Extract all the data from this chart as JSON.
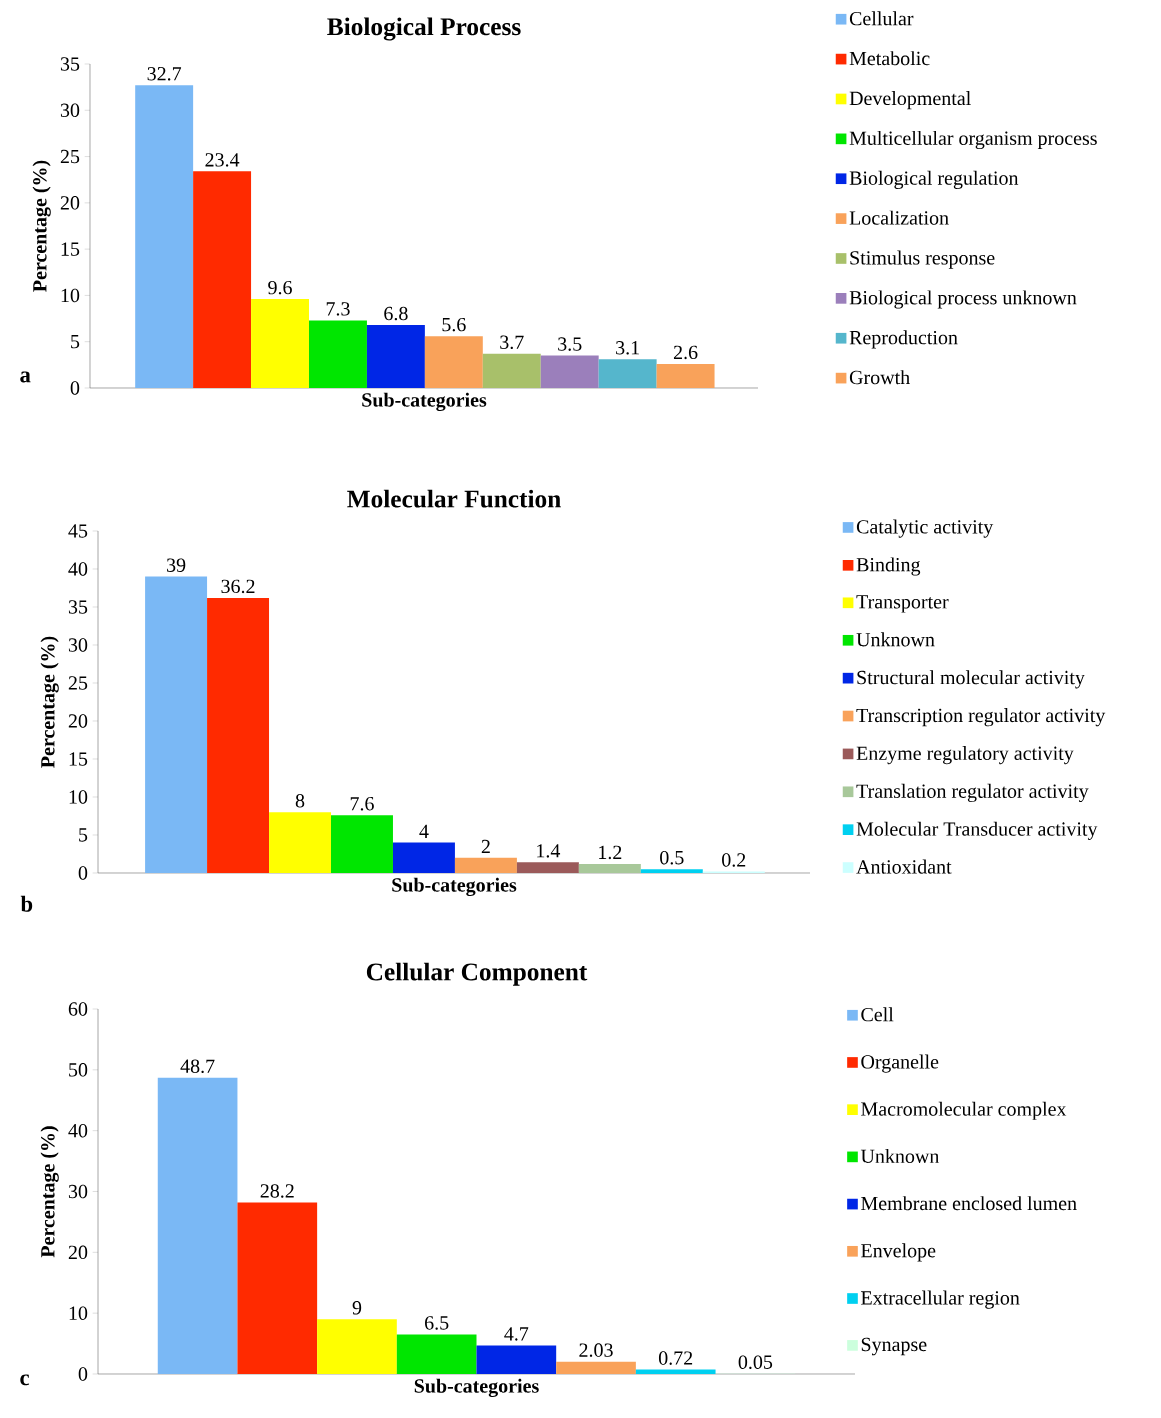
{
  "chart_data": [
    {
      "type": "bar",
      "title": "Biological Process",
      "xlabel": "Sub-categories",
      "ylabel": "Percentage (%)",
      "categories": [
        null
      ],
      "ylim": [
        0,
        35
      ],
      "yticks": [
        0,
        5,
        10,
        15,
        20,
        25,
        30,
        35
      ],
      "data_labels": true,
      "legend": "right",
      "annotations": [
        "a"
      ],
      "series": [
        {
          "name": "Cellular",
          "color": "#7ab8f5",
          "values": [
            32.7
          ]
        },
        {
          "name": "Metabolic",
          "color": "#ff2a00",
          "values": [
            23.4
          ]
        },
        {
          "name": "Developmental",
          "color": "#ffff00",
          "values": [
            9.6
          ]
        },
        {
          "name": "Multicellular organism process",
          "color": "#00e600",
          "values": [
            7.3
          ]
        },
        {
          "name": "Biological regulation",
          "color": "#0026e6",
          "values": [
            6.8
          ]
        },
        {
          "name": "Localization",
          "color": "#f9a25a",
          "values": [
            5.6
          ]
        },
        {
          "name": "Stimulus response",
          "color": "#a8c06a",
          "values": [
            3.7
          ]
        },
        {
          "name": "Biological process unknown",
          "color": "#9b7fbb",
          "values": [
            3.5
          ]
        },
        {
          "name": "Reproduction",
          "color": "#55b6cc",
          "values": [
            3.1
          ]
        },
        {
          "name": "Growth",
          "color": "#f9a25a",
          "values": [
            2.6
          ]
        }
      ]
    },
    {
      "type": "bar",
      "title": "Molecular Function",
      "xlabel": "Sub-categories",
      "ylabel": "Percentage (%)",
      "categories": [
        null
      ],
      "ylim": [
        0,
        45
      ],
      "yticks": [
        0,
        5,
        10,
        15,
        20,
        25,
        30,
        35,
        40,
        45
      ],
      "data_labels": true,
      "legend": "right",
      "annotations": [
        "b"
      ],
      "series": [
        {
          "name": "Catalytic activity",
          "color": "#7ab8f5",
          "values": [
            39
          ]
        },
        {
          "name": "Binding",
          "color": "#ff2a00",
          "values": [
            36.2
          ]
        },
        {
          "name": "Transporter",
          "color": "#ffff00",
          "values": [
            8
          ]
        },
        {
          "name": "Unknown",
          "color": "#00e600",
          "values": [
            7.6
          ]
        },
        {
          "name": "Structural molecular activity",
          "color": "#0026e6",
          "values": [
            4
          ]
        },
        {
          "name": "Transcription regulator activity",
          "color": "#f9a25a",
          "values": [
            2
          ]
        },
        {
          "name": "Enzyme regulatory activity",
          "color": "#9b5a5a",
          "values": [
            1.4
          ]
        },
        {
          "name": "Translation regulator activity",
          "color": "#a8c89a",
          "values": [
            1.2
          ]
        },
        {
          "name": "Molecular Transducer activity",
          "color": "#00d0f0",
          "values": [
            0.5
          ]
        },
        {
          "name": "Antioxidant",
          "color": "#ccffff",
          "values": [
            0.2
          ]
        }
      ]
    },
    {
      "type": "bar",
      "title": "Cellular Component",
      "xlabel": "Sub-categories",
      "ylabel": "Percentage (%)",
      "categories": [
        null
      ],
      "ylim": [
        0,
        60
      ],
      "yticks": [
        0,
        10,
        20,
        30,
        40,
        50,
        60
      ],
      "data_labels": true,
      "legend": "right",
      "annotations": [
        "c"
      ],
      "series": [
        {
          "name": "Cell",
          "color": "#7ab8f5",
          "values": [
            48.7
          ]
        },
        {
          "name": "Organelle",
          "color": "#ff2a00",
          "values": [
            28.2
          ]
        },
        {
          "name": "Macromolecular complex",
          "color": "#ffff00",
          "values": [
            9
          ]
        },
        {
          "name": "Unknown",
          "color": "#00e600",
          "values": [
            6.5
          ]
        },
        {
          "name": "Membrane enclosed lumen",
          "color": "#0026e6",
          "values": [
            4.7
          ]
        },
        {
          "name": "Envelope",
          "color": "#f9a25a",
          "values": [
            2.03
          ]
        },
        {
          "name": "Extracellular region",
          "color": "#00d0f0",
          "values": [
            0.72
          ]
        },
        {
          "name": "Synapse",
          "color": "#ccffdd",
          "values": [
            0.05
          ]
        }
      ]
    }
  ]
}
